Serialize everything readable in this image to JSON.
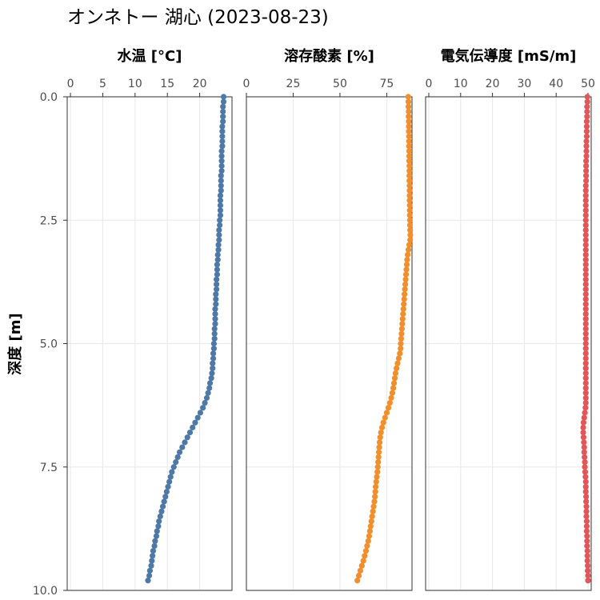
{
  "chart_data": {
    "type": "scatter",
    "title": "オンネトー 湖心 (2023-08-23)",
    "ylabel": "深度 [m]",
    "ylim": [
      0,
      10
    ],
    "y_reversed": true,
    "y_ticks": [
      0,
      2.5,
      5,
      7.5,
      10
    ],
    "y_tick_labels": [
      "0.0",
      "2.5",
      "5.0",
      "7.5",
      "10.0"
    ],
    "grid": true,
    "shared_depth": [
      0.0,
      0.1,
      0.2,
      0.3,
      0.4,
      0.5,
      0.6,
      0.7,
      0.8,
      0.9,
      1.0,
      1.1,
      1.2,
      1.3,
      1.4,
      1.5,
      1.6,
      1.7,
      1.8,
      1.9,
      2.0,
      2.1,
      2.2,
      2.3,
      2.4,
      2.5,
      2.6,
      2.7,
      2.8,
      2.9,
      3.0,
      3.1,
      3.2,
      3.3,
      3.4,
      3.5,
      3.6,
      3.7,
      3.8,
      3.9,
      4.0,
      4.1,
      4.2,
      4.3,
      4.4,
      4.5,
      4.6,
      4.7,
      4.8,
      4.9,
      5.0,
      5.1,
      5.2,
      5.3,
      5.4,
      5.5,
      5.6,
      5.7,
      5.8,
      5.9,
      6.0,
      6.1,
      6.2,
      6.3,
      6.4,
      6.5,
      6.6,
      6.7,
      6.8,
      6.9,
      7.0,
      7.1,
      7.2,
      7.3,
      7.4,
      7.5,
      7.6,
      7.7,
      7.8,
      7.9,
      8.0,
      8.1,
      8.2,
      8.3,
      8.4,
      8.5,
      8.6,
      8.7,
      8.8,
      8.9,
      9.0,
      9.1,
      9.2,
      9.3,
      9.4,
      9.5,
      9.6,
      9.7,
      9.8
    ],
    "panels": [
      {
        "xlabel": "水温 [°C]",
        "xlim": [
          -0.5,
          25
        ],
        "x_ticks": [
          0,
          5,
          10,
          15,
          20
        ],
        "x_tick_labels": [
          "0",
          "5",
          "10",
          "15",
          "20"
        ],
        "color": "#4e79a7",
        "values": [
          23.7,
          23.7,
          23.6,
          23.6,
          23.6,
          23.6,
          23.5,
          23.5,
          23.5,
          23.5,
          23.5,
          23.4,
          23.4,
          23.4,
          23.4,
          23.4,
          23.3,
          23.3,
          23.3,
          23.3,
          23.2,
          23.2,
          23.2,
          23.2,
          23.2,
          23.1,
          23.1,
          23.0,
          23.0,
          23.0,
          22.9,
          22.9,
          22.8,
          22.8,
          22.7,
          22.7,
          22.7,
          22.6,
          22.6,
          22.6,
          22.5,
          22.5,
          22.5,
          22.4,
          22.4,
          22.4,
          22.4,
          22.3,
          22.3,
          22.3,
          22.2,
          22.2,
          22.1,
          22.1,
          22.0,
          22.0,
          21.9,
          21.8,
          21.6,
          21.5,
          21.3,
          21.1,
          20.8,
          20.5,
          20.1,
          19.7,
          19.3,
          18.9,
          18.5,
          18.1,
          17.7,
          17.3,
          16.9,
          16.6,
          16.3,
          16.0,
          15.7,
          15.5,
          15.3,
          15.1,
          14.9,
          14.7,
          14.5,
          14.3,
          14.1,
          13.9,
          13.7,
          13.6,
          13.4,
          13.3,
          13.1,
          13.0,
          12.8,
          12.7,
          12.6,
          12.5,
          12.3,
          12.2,
          12.0
        ]
      },
      {
        "xlabel": "溶存酸素 [%]",
        "xlim": [
          0,
          88.5
        ],
        "x_ticks": [
          0,
          25,
          50,
          75
        ],
        "x_tick_labels": [
          "0",
          "25",
          "50",
          "75"
        ],
        "color": "#f28e2b",
        "values": [
          86.5,
          86.6,
          86.6,
          86.7,
          86.7,
          86.8,
          86.8,
          86.8,
          86.9,
          86.9,
          86.9,
          87.0,
          87.0,
          87.0,
          87.1,
          87.1,
          87.1,
          87.1,
          87.2,
          87.2,
          87.2,
          87.2,
          87.3,
          87.3,
          87.3,
          87.4,
          87.4,
          87.5,
          87.6,
          87.5,
          87.0,
          86.6,
          86.2,
          85.9,
          85.7,
          85.5,
          85.3,
          85.1,
          84.9,
          84.7,
          84.5,
          84.3,
          84.1,
          83.9,
          83.7,
          83.5,
          83.3,
          83.1,
          82.9,
          82.7,
          82.5,
          82.4,
          82.0,
          81.4,
          80.8,
          80.2,
          79.7,
          79.3,
          78.9,
          78.5,
          78.0,
          77.4,
          76.7,
          75.9,
          75.0,
          74.1,
          73.2,
          72.5,
          71.9,
          71.5,
          71.2,
          71.0,
          70.8,
          70.6,
          70.4,
          70.2,
          70.0,
          69.7,
          69.4,
          69.1,
          68.9,
          68.7,
          68.4,
          68.0,
          67.6,
          67.2,
          66.8,
          66.4,
          66.0,
          65.6,
          65.1,
          64.5,
          63.9,
          63.2,
          62.5,
          61.7,
          60.9,
          60.1,
          59.3
        ]
      },
      {
        "xlabel": "電気伝導度 [mS/m]",
        "xlim": [
          -1,
          51
        ],
        "x_ticks": [
          0,
          10,
          20,
          30,
          40,
          50
        ],
        "x_tick_labels": [
          "0",
          "10",
          "20",
          "30",
          "40",
          "50"
        ],
        "color": "#e15759",
        "values": [
          49.8,
          49.8,
          49.7,
          49.7,
          49.7,
          49.6,
          49.6,
          49.6,
          49.6,
          49.5,
          49.5,
          49.5,
          49.5,
          49.4,
          49.4,
          49.4,
          49.4,
          49.4,
          49.3,
          49.3,
          49.3,
          49.3,
          49.3,
          49.3,
          49.3,
          49.3,
          49.3,
          49.3,
          49.3,
          49.3,
          49.3,
          49.3,
          49.3,
          49.3,
          49.3,
          49.3,
          49.3,
          49.3,
          49.3,
          49.3,
          49.3,
          49.3,
          49.3,
          49.3,
          49.3,
          49.3,
          49.3,
          49.3,
          49.3,
          49.3,
          49.3,
          49.3,
          49.3,
          49.3,
          49.3,
          49.3,
          49.3,
          49.3,
          49.3,
          49.3,
          49.3,
          49.3,
          49.3,
          49.2,
          49.0,
          48.8,
          48.6,
          48.5,
          48.5,
          48.6,
          48.7,
          48.8,
          48.8,
          48.9,
          49.0,
          49.0,
          49.1,
          49.2,
          49.3,
          49.3,
          49.3,
          49.4,
          49.4,
          49.5,
          49.5,
          49.5,
          49.6,
          49.6,
          49.6,
          49.7,
          49.7,
          49.7,
          49.8,
          49.8,
          49.8,
          49.9,
          49.9,
          50.0,
          50.0
        ]
      }
    ]
  }
}
